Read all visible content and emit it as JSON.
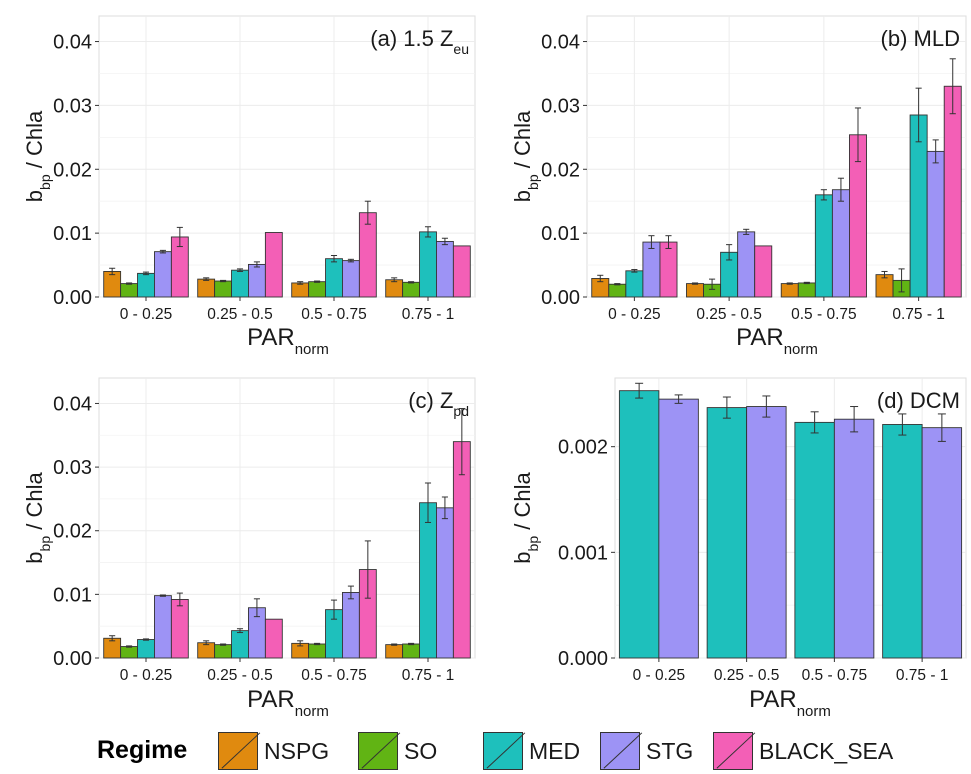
{
  "colors": {
    "NSPG": "#e08a0f",
    "SO": "#61b414",
    "MED": "#1ec0bc",
    "STG": "#9d93f5",
    "BLACK_SEA": "#f35fb6",
    "panel_bg": "#ffffff",
    "grid": "#ececec",
    "panel_border": "#dddddd"
  },
  "legend": {
    "title": "Regime",
    "items": [
      {
        "key": "NSPG",
        "label": "NSPG"
      },
      {
        "key": "SO",
        "label": "SO"
      },
      {
        "key": "MED",
        "label": "MED"
      },
      {
        "key": "STG",
        "label": "STG"
      },
      {
        "key": "BLACK_SEA",
        "label": "BLACK_SEA"
      }
    ]
  },
  "chart_data": [
    {
      "panel": "a",
      "type": "bar",
      "title": "(a) 1.5 Z",
      "title_sub": "eu",
      "xlabel": "PAR",
      "xlabel_sub": "norm",
      "ylabel": "b",
      "ylabel_sub": "bp",
      "ylabel_rest": " / Chla",
      "ylim": [
        0,
        0.044
      ],
      "yticks": [
        0,
        0.01,
        0.02,
        0.03,
        0.04
      ],
      "ytick_labels": [
        "0.00",
        "0.01",
        "0.02",
        "0.03",
        "0.04"
      ],
      "grid": true,
      "categories": [
        "0 - 0.25",
        "0.25 - 0.5",
        "0.5 - 0.75",
        "0.75 - 1"
      ],
      "series": [
        {
          "name": "NSPG",
          "values": [
            0.004,
            0.0028,
            0.0022,
            0.0027
          ],
          "errors": [
            0.0005,
            0.0002,
            0.0002,
            0.0003
          ]
        },
        {
          "name": "SO",
          "values": [
            0.0021,
            0.0025,
            0.0024,
            0.0023
          ],
          "errors": [
            0.0001,
            0.0001,
            0.0001,
            0.0001
          ]
        },
        {
          "name": "MED",
          "values": [
            0.0037,
            0.0042,
            0.006,
            0.0102
          ],
          "errors": [
            0.0002,
            0.0002,
            0.0005,
            0.0008
          ]
        },
        {
          "name": "STG",
          "values": [
            0.0071,
            0.0051,
            0.0057,
            0.0087
          ],
          "errors": [
            0.0002,
            0.0004,
            0.0002,
            0.0005
          ]
        },
        {
          "name": "BLACK_SEA",
          "values": [
            0.0094,
            0.0101,
            0.0132,
            0.008
          ],
          "errors": [
            0.0015,
            0.0,
            0.0018,
            0.0
          ]
        }
      ]
    },
    {
      "panel": "b",
      "type": "bar",
      "title": "(b) MLD",
      "title_sub": "",
      "xlabel": "PAR",
      "xlabel_sub": "norm",
      "ylabel": "b",
      "ylabel_sub": "bp",
      "ylabel_rest": " / Chla",
      "ylim": [
        0,
        0.044
      ],
      "yticks": [
        0,
        0.01,
        0.02,
        0.03,
        0.04
      ],
      "ytick_labels": [
        "0.00",
        "0.01",
        "0.02",
        "0.03",
        "0.04"
      ],
      "grid": true,
      "categories": [
        "0 - 0.25",
        "0.25 - 0.5",
        "0.5 - 0.75",
        "0.75 - 1"
      ],
      "series": [
        {
          "name": "NSPG",
          "values": [
            0.0029,
            0.0021,
            0.0021,
            0.0035
          ],
          "errors": [
            0.0005,
            0.0001,
            0.0001,
            0.0005
          ]
        },
        {
          "name": "SO",
          "values": [
            0.002,
            0.002,
            0.0022,
            0.0026
          ],
          "errors": [
            0.0001,
            0.0008,
            0.0001,
            0.0018
          ]
        },
        {
          "name": "MED",
          "values": [
            0.0041,
            0.007,
            0.016,
            0.0285
          ],
          "errors": [
            0.0002,
            0.0012,
            0.0008,
            0.0042
          ]
        },
        {
          "name": "STG",
          "values": [
            0.0086,
            0.0102,
            0.0168,
            0.0228
          ],
          "errors": [
            0.001,
            0.0004,
            0.0018,
            0.0018
          ]
        },
        {
          "name": "BLACK_SEA",
          "values": [
            0.0086,
            0.008,
            0.0254,
            0.033
          ],
          "errors": [
            0.001,
            0.0,
            0.0042,
            0.0043
          ]
        }
      ]
    },
    {
      "panel": "c",
      "type": "bar",
      "title": "(c) Z",
      "title_sub": "pd",
      "xlabel": "PAR",
      "xlabel_sub": "norm",
      "ylabel": "b",
      "ylabel_sub": "bp",
      "ylabel_rest": " / Chla",
      "ylim": [
        0,
        0.044
      ],
      "yticks": [
        0,
        0.01,
        0.02,
        0.03,
        0.04
      ],
      "ytick_labels": [
        "0.00",
        "0.01",
        "0.02",
        "0.03",
        "0.04"
      ],
      "grid": true,
      "categories": [
        "0 - 0.25",
        "0.25 - 0.5",
        "0.5 - 0.75",
        "0.75 - 1"
      ],
      "series": [
        {
          "name": "NSPG",
          "values": [
            0.0031,
            0.0024,
            0.0023,
            0.0021
          ],
          "errors": [
            0.0004,
            0.0003,
            0.0004,
            0.0001
          ]
        },
        {
          "name": "SO",
          "values": [
            0.0018,
            0.0021,
            0.0022,
            0.0022
          ],
          "errors": [
            0.0001,
            0.0001,
            0.0001,
            0.0001
          ]
        },
        {
          "name": "MED",
          "values": [
            0.0029,
            0.0043,
            0.0076,
            0.0244
          ],
          "errors": [
            0.0001,
            0.0003,
            0.0015,
            0.0031
          ]
        },
        {
          "name": "STG",
          "values": [
            0.0098,
            0.0079,
            0.0103,
            0.0236
          ],
          "errors": [
            0.0001,
            0.0014,
            0.001,
            0.0017
          ]
        },
        {
          "name": "BLACK_SEA",
          "values": [
            0.0092,
            0.0061,
            0.0139,
            0.034
          ],
          "errors": [
            0.001,
            0.0,
            0.0045,
            0.0052
          ]
        }
      ]
    },
    {
      "panel": "d",
      "type": "bar",
      "title": "(d) DCM",
      "title_sub": "",
      "xlabel": "PAR",
      "xlabel_sub": "norm",
      "ylabel": "b",
      "ylabel_sub": "bp",
      "ylabel_rest": " / Chla",
      "ylim": [
        0,
        0.00265
      ],
      "yticks": [
        0,
        0.001,
        0.002
      ],
      "ytick_labels": [
        "0.000",
        "0.001",
        "0.002"
      ],
      "grid": true,
      "categories": [
        "0 - 0.25",
        "0.25 - 0.5",
        "0.5 - 0.75",
        "0.75 - 1"
      ],
      "series": [
        {
          "name": "MED",
          "values": [
            0.00253,
            0.00237,
            0.00223,
            0.00221
          ],
          "errors": [
            7e-05,
            0.0001,
            0.0001,
            0.0001
          ]
        },
        {
          "name": "STG",
          "values": [
            0.00245,
            0.00238,
            0.00226,
            0.00218
          ],
          "errors": [
            4e-05,
            0.0001,
            0.00012,
            0.00013
          ]
        }
      ]
    }
  ]
}
